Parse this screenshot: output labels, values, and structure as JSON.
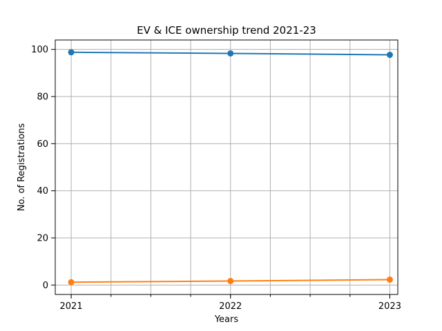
{
  "chart_data": {
    "type": "line",
    "title": "EV & ICE ownership trend 2021-23",
    "xlabel": "Years",
    "ylabel": "No. of Registrations",
    "x": [
      2021,
      2022,
      2023
    ],
    "x_tick_labels": [
      "2021",
      "2022",
      "2023"
    ],
    "xlim": [
      2020.9,
      2023.05
    ],
    "ylim": [
      -4,
      104
    ],
    "y_ticks": [
      0,
      20,
      40,
      60,
      80,
      100
    ],
    "grid": true,
    "series": [
      {
        "values": [
          98.8,
          98.3,
          97.7
        ],
        "color": "#1f77b4",
        "marker": "circle"
      },
      {
        "values": [
          1.2,
          1.7,
          2.3
        ],
        "color": "#ff7f0e",
        "marker": "circle"
      }
    ]
  }
}
